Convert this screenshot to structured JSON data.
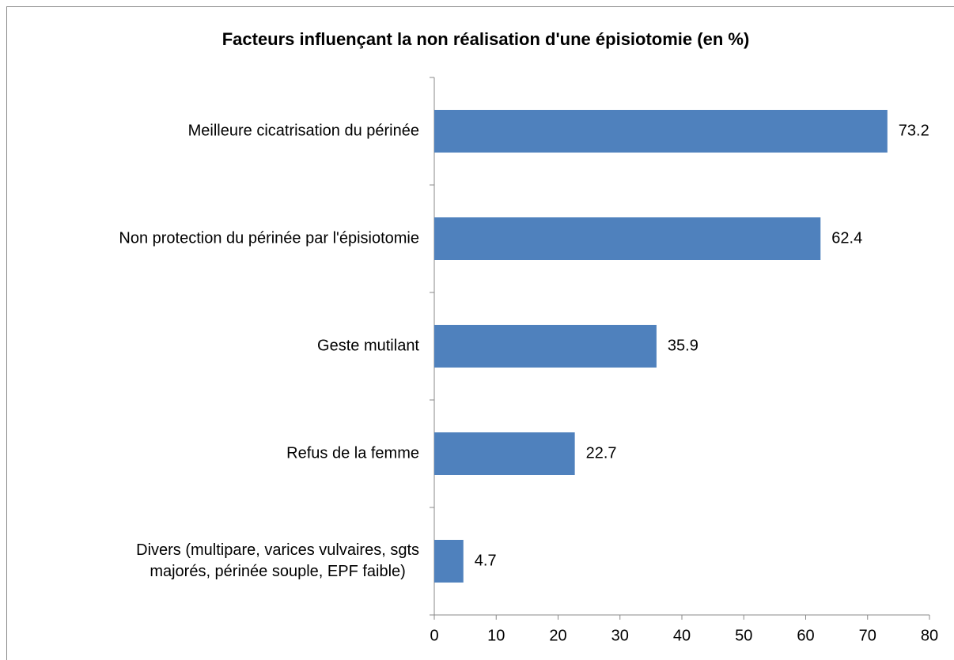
{
  "chart_data": {
    "type": "bar",
    "orientation": "horizontal",
    "title": "Facteurs influençant la non réalisation d'une épisiotomie (en %)",
    "categories": [
      "Meilleure cicatrisation du périnée",
      "Non protection du périnée par l'épisiotomie",
      "Geste mutilant",
      "Refus de la femme",
      "Divers (multipare, varices vulvaires, sgts\nmajorés, périnée souple, EPF faible)"
    ],
    "values": [
      73.2,
      62.4,
      35.9,
      22.7,
      4.7
    ],
    "color": "#4f81bd",
    "xlim": [
      0,
      80
    ],
    "xticks": [
      0,
      10,
      20,
      30,
      40,
      50,
      60,
      70,
      80
    ],
    "grid": false
  }
}
